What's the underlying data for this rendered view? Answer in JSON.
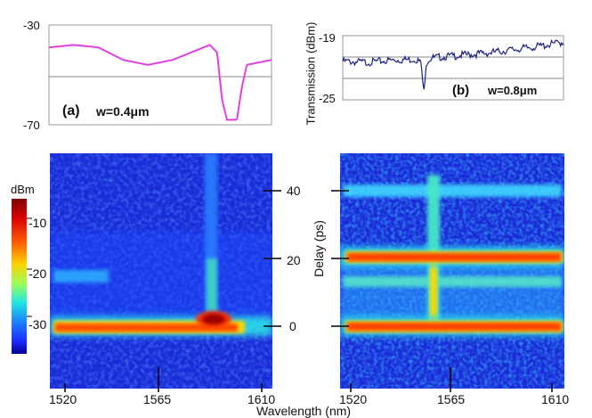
{
  "chart_data": [
    {
      "id": "a",
      "type": "line",
      "panel_label": "(a)",
      "annotation": "w=0.4μm",
      "ylim": [
        -70,
        -30
      ],
      "yticks": [
        "-30",
        "-70"
      ],
      "reference_line": -50,
      "line_color": "#e040e0",
      "x": [
        1520,
        1530,
        1540,
        1550,
        1560,
        1570,
        1580,
        1585,
        1588,
        1590,
        1592,
        1594,
        1596,
        1598,
        1600,
        1605,
        1610
      ],
      "y": [
        -39,
        -38,
        -39,
        -44,
        -46,
        -44,
        -40,
        -38,
        -41,
        -60,
        -68,
        -68,
        -68,
        -55,
        -46,
        -45,
        -44
      ]
    },
    {
      "id": "b",
      "type": "line",
      "panel_label": "(b)",
      "annotation": "w=0.8μm",
      "ylabel": "Transmission (dBm)",
      "ylim": [
        -25,
        -19
      ],
      "yticks": [
        "-19",
        "-25"
      ],
      "reference_lines": [
        -21,
        -23
      ],
      "line_color": "#1a237e",
      "x": [
        1520,
        1530,
        1540,
        1550,
        1552,
        1553,
        1554,
        1556,
        1560,
        1570,
        1580,
        1590,
        1600,
        1610
      ],
      "y": [
        -21.4,
        -21.5,
        -21.3,
        -21.2,
        -21.6,
        -24.6,
        -21.5,
        -21.1,
        -21.0,
        -20.8,
        -20.6,
        -20.3,
        -20.0,
        -19.6
      ]
    },
    {
      "id": "c",
      "type": "heatmap",
      "colorbar_label": "dBm",
      "colorbar_ticks": [
        "-10",
        "-20",
        "-30"
      ],
      "colorbar_range": [
        -35,
        -5
      ],
      "xlabel": "Wavelength  (nm)",
      "xticks": [
        "1520",
        "1565",
        "1610"
      ],
      "ylabel": "Delay  (ps)",
      "yticks": [
        "40",
        "20",
        "0"
      ],
      "features": [
        {
          "kind": "horizontal_band",
          "delay_ps": 0,
          "x_from": 1520,
          "x_to": 1595,
          "level": -9
        },
        {
          "kind": "horizontal_band",
          "delay_ps": 14,
          "x_from": 1520,
          "x_to": 1534,
          "level": -25
        },
        {
          "kind": "hot_spot",
          "wavelength_nm": 1582,
          "delay_ps": 1,
          "level": -5
        },
        {
          "kind": "vertical_stripe",
          "wavelength_nm": 1585,
          "delay_from_ps": 2,
          "delay_to_ps": 50,
          "level": -29
        }
      ]
    },
    {
      "id": "d",
      "type": "heatmap",
      "xticks": [
        "1520",
        "1565",
        "1610"
      ],
      "features": [
        {
          "kind": "horizontal_band",
          "delay_ps": 0,
          "x_from": 1520,
          "x_to": 1610,
          "level": -9
        },
        {
          "kind": "horizontal_band",
          "delay_ps": 20,
          "x_from": 1520,
          "x_to": 1610,
          "level": -9
        },
        {
          "kind": "horizontal_band",
          "delay_ps": 40,
          "x_from": 1520,
          "x_to": 1610,
          "level": -24
        },
        {
          "kind": "horizontal_band",
          "delay_ps": 13,
          "x_from": 1520,
          "x_to": 1610,
          "level": -26
        },
        {
          "kind": "vertical_stripe",
          "wavelength_nm": 1554,
          "delay_from_ps": 0,
          "delay_to_ps": 42,
          "level": -17
        }
      ]
    }
  ]
}
